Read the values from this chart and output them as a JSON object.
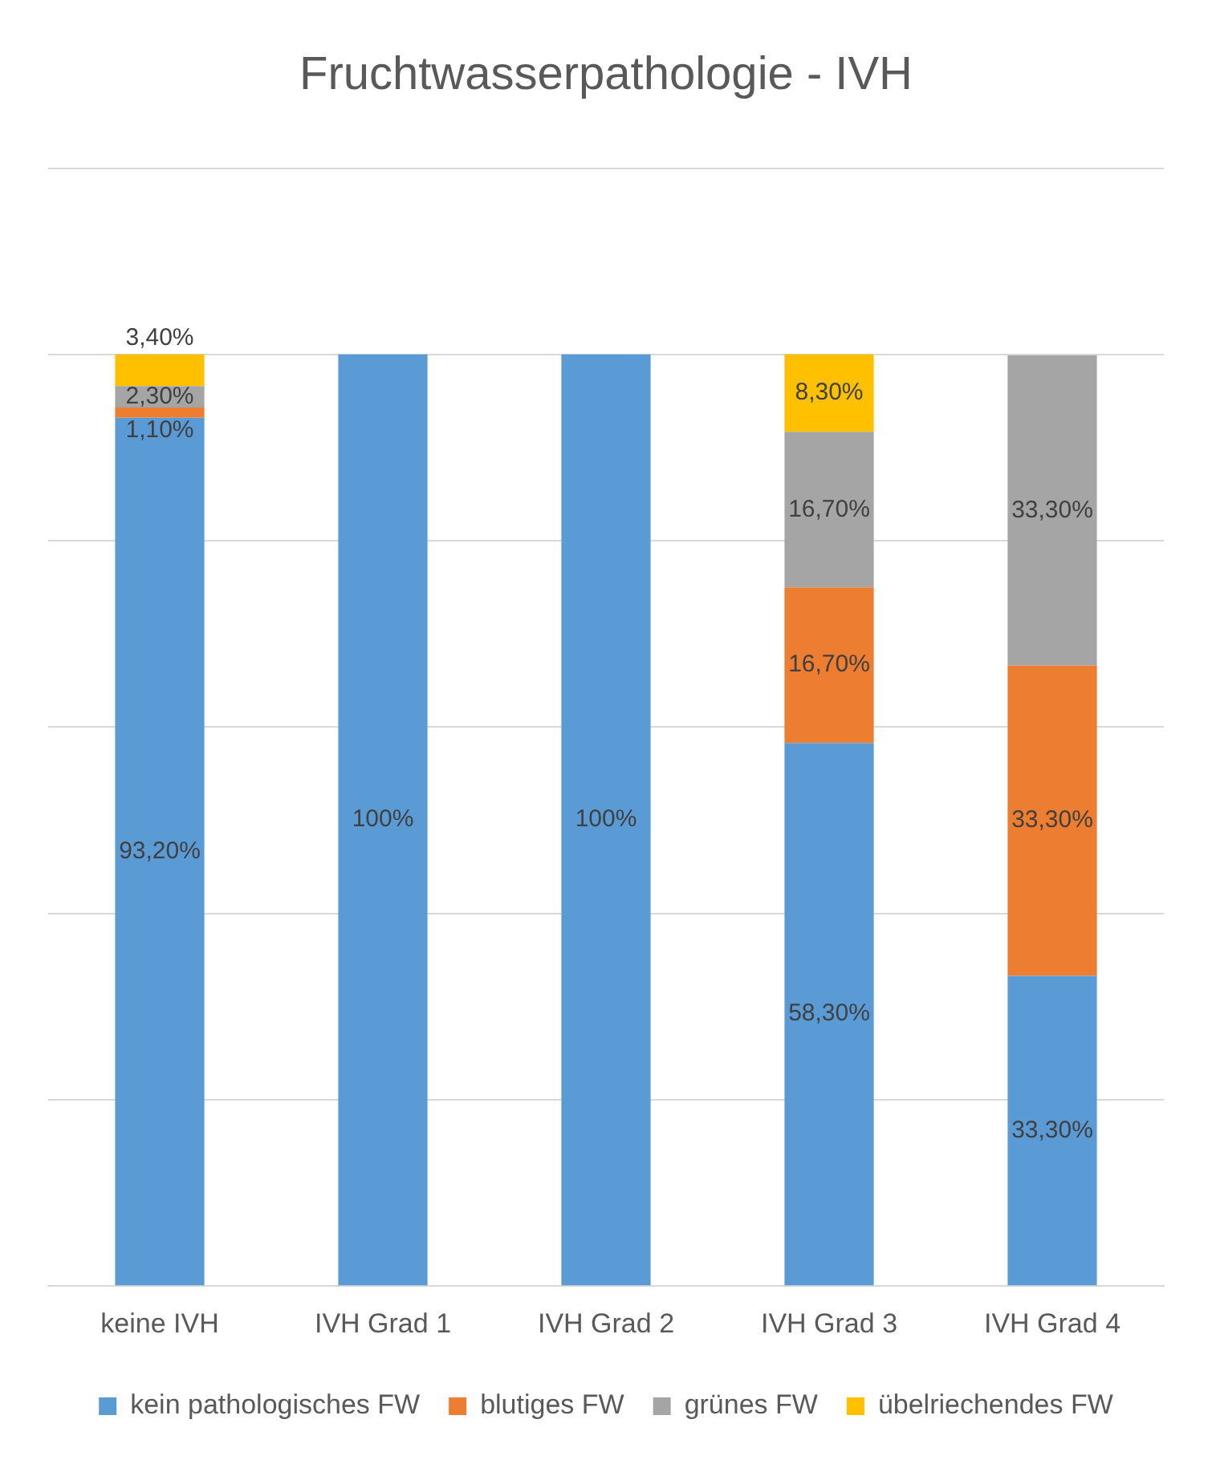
{
  "chart_data": {
    "type": "bar",
    "title": "Fruchtwasserpathologie - IVH",
    "categories": [
      "keine IVH",
      "IVH Grad 1",
      "IVH Grad 2",
      "IVH Grad 3",
      "IVH Grad 4"
    ],
    "stacked": true,
    "ylim": [
      0,
      120
    ],
    "yticks": [
      {
        "value": 0,
        "label": null
      },
      {
        "value": 20,
        "label": null
      },
      {
        "value": 40,
        "label": null
      },
      {
        "value": 60,
        "label": null
      },
      {
        "value": 80,
        "label": null
      },
      {
        "value": 100,
        "label": null
      },
      {
        "value": 120,
        "label": null
      }
    ],
    "tick_labels": "x",
    "grid": "y",
    "legend": "bottom",
    "series": [
      {
        "name": "kein pathologisches FW",
        "color": "#5b9bd5",
        "values": [
          93.2,
          100,
          100,
          58.3,
          33.3
        ],
        "value_labels": [
          "93,20%",
          "100%",
          "100%",
          "58,30%",
          "33,30%"
        ]
      },
      {
        "name": "blutiges FW",
        "color": "#ed7d31",
        "values": [
          1.1,
          null,
          null,
          16.7,
          33.3
        ],
        "value_labels": [
          "1,10%",
          null,
          null,
          "16,70%",
          "33,30%"
        ]
      },
      {
        "name": "grünes FW",
        "color": "#a5a5a5",
        "values": [
          2.3,
          null,
          null,
          16.7,
          33.3
        ],
        "value_labels": [
          "2,30%",
          null,
          null,
          "16,70%",
          "33,30%"
        ]
      },
      {
        "name": "übelriechendes FW",
        "color": "#ffc000",
        "values": [
          3.4,
          null,
          null,
          8.3,
          null
        ],
        "value_labels": [
          "3,40%",
          null,
          null,
          "8,30%",
          null
        ]
      }
    ]
  }
}
